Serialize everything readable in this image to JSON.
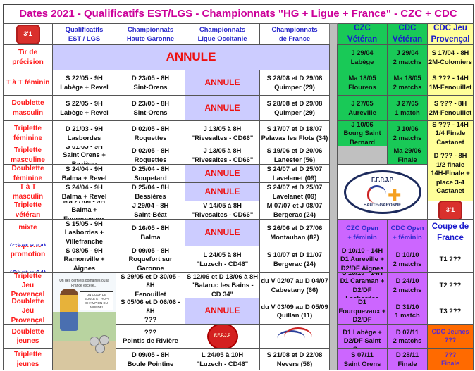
{
  "title": "Dates 2021 - Qualificatifs EST/LGS - Championnats \"HG + Ligue + France\" - CZC + CDC",
  "colors": {
    "title": "#cc0099",
    "label": "#ff1a1a",
    "header": "#2a2acc",
    "annule_bg": "#ccccff",
    "czc_green": "#19c957",
    "jeu_provencal_yellow": "#ffff99",
    "open_purple": "#cc66ff",
    "jeunes_orange": "#ff6a00"
  },
  "logos": {
    "club_logo": "3'1",
    "ffpjp_logo": "F.F.P.J.P HAUTE-GARONNE",
    "ligue_logo": "F.F.P.J.P",
    "france_logo": "FFPJP"
  },
  "cartoon": {
    "caption": "Un des derniers domaines où la France excelle...",
    "bubble": "Un coup de boule et hop! Champion du monde!"
  },
  "headers": [
    "Qualificatifs\nEST / LGS",
    "Championnats\nHaute Garonne",
    "Championnats\nLigue Occitanie",
    "Championnats\nde France",
    "CZC\nVétéran",
    "CDC\nVétéran",
    "CDC Jeu\nProvençal"
  ],
  "headers2": [
    "CZC Open\n+ féminin",
    "CDC Open\n+ féminin",
    "Coupe de\nFrance"
  ],
  "annule": "ANNULE",
  "rows": [
    {
      "label": "Tir de\nprécision",
      "cells": []
    },
    {
      "label": "T à T féminin",
      "cells": [
        "S 22/05 - 9H\nLabège + Revel",
        "D 23/05 - 8H\nSint-Orens",
        "ANNULE",
        "S 28/08 et D 29/08\nQuimper (29)"
      ]
    },
    {
      "label": "Doublette\nmasculin",
      "cells": [
        "S 22/05 - 9H\nLabège + Revel",
        "D 23/05 - 8H\nSint-Orens",
        "ANNULE",
        "S 28/08 et D 29/08\nQuimper (29)"
      ]
    },
    {
      "label": "Triplette\nféminine",
      "cells": [
        "D 21/03 - 9H\nLasbordes",
        "D 02/05 - 8H\nRoquettes",
        "J 13/05 à 8H\n\"Rivesaltes - CD66\"",
        "S 17/07 et D 18/07\nPalavas les Flots (34)"
      ]
    },
    {
      "label": "Triplette\nmasculine",
      "cells": [
        "S 01/05 - 9H\nSaint Orens + Baziège",
        "D 02/05 - 8H\nRoquettes",
        "J 13/05 à 8H\n\"Rivesaltes - CD66\"",
        "S 19/06 et D 20/06\nLanester (56)"
      ]
    },
    {
      "label": "Doublette\nféminine",
      "cells": [
        "S 24/04 - 9H\nBalma + Revel",
        "D 25/04 - 8H\nSoupetard",
        "ANNULE",
        "S 24/07 et D 25/07\nLavelanet (09)"
      ]
    },
    {
      "label": "T à T masculin",
      "cells": [
        "S 24/04 - 9H\nBalma + Revel",
        "D 25/04 - 8H\nBessières",
        "ANNULE",
        "S 24/07 et D 25/07\nLavelanet (09)"
      ]
    },
    {
      "label": "Triplette\nvétéran",
      "cells": [
        "Ma 27/04 - 9H\nBalma + Fourquevaux",
        "J 29/04 - 8H\nSaint-Béat",
        "V 14/05 à 8H\n\"Rivesaltes - CD66\"",
        "M 07/07 et J 08/07\nBergerac (24)"
      ]
    },
    {
      "label": "Doublette\nmixte",
      "sub": "(Chpt x 64)",
      "cells": [
        "S 15/05 - 9H\nLasbordes +\nVillefranche",
        "D 16/05 - 8H\nBalma",
        "ANNULE",
        "S 26/06 et D 27/06\nMontauban (82)"
      ]
    },
    {
      "label": "Triplette\npromotion",
      "sub": "(Chpt x 64)",
      "cells": [
        "S 08/05 - 9H\nRamonville + Aignes",
        "D 09/05 - 8H\nRoquefort sur Garonne",
        "L 24/05 à 8H\n\"Luzech - CD46\"",
        "S 10/07 et D 11/07\nBergerac (24)"
      ]
    },
    {
      "label": "Triplette\nJeu Provençal",
      "cells": [
        "",
        "S 29/05 et D 30/05 - 8H\nFenouillet",
        "S 12/06 et D 13/06 à 8H\n\"Balaruc les Bains - CD 34\"",
        "du V 02/07 au D 04/07\nCabestany (66)"
      ]
    },
    {
      "label": "Doublette\nJeu Provençal",
      "cells": [
        "",
        "S 05/06 et D 06/06 - 8H\n???",
        "ANNULE",
        "du V 03/09 au D 05/09\nQuillan (11)"
      ]
    },
    {
      "label": "Doublette\njeunes",
      "cells": [
        "",
        "???\nPointis de Rivière",
        "",
        ""
      ]
    },
    {
      "label": "Triplette\njeunes",
      "cells": [
        "",
        "D 09/05 - 8H\nBoule Pointine",
        "L 24/05 à 10H\n\"Luzech - CD46\"",
        "S 21/08 et D 22/08\nNevers (58)"
      ]
    }
  ],
  "right": {
    "veteran": [
      [
        "J 29/04\nLabège",
        "J 29/04\n2 matchs",
        "S 17/04 - 8H\n2M-Colomiers"
      ],
      [
        "Ma 18/05\nFlourens",
        "Ma 18/05\n2 matchs",
        "S ??? - 14H\n1M-Fenouillet"
      ],
      [
        "J 27/05\nAureville",
        "J 27/05\n1 match",
        "S ??? - 8H\n2M-Fenouillet"
      ],
      [
        "J 10/06\nBourg Saint\nBernard",
        "J 10/06\n2 matchs",
        "S ??? - 14H\n1/4 Finale\nCastanet"
      ]
    ],
    "cdc_final": "Ma 29/06\nFinale",
    "jp_final": "D ??? - 8H\n1/2 finale\n14H-Finale +\nplace 3-4\nCastanet",
    "open": [
      [
        "D 10/10 - 14H\nD1 Aureville +\nD2/DF Aignes",
        "D 10/10\n2 matchs",
        "T1 ???"
      ],
      [
        "S 16/10 - 14H\nD1 Caraman +\nD2/DF Lasbordes",
        "D 24/10\n2 matchs",
        "T2 ???"
      ],
      [
        "D 24/10 - 14H\nD1 Fourquevaux +\nD2/DF Montgiscard",
        "D 31/10\n1 match",
        "T3 ???"
      ],
      [
        "S 30/10 - 14H\nD1 Labège +\nD2/DF Saint Orens",
        "D 07/11\n2 matchs",
        "CDC Jeunes\n???"
      ],
      [
        "S 07/11\nSaint Orens",
        "D 28/11\nFinale",
        "???\nFinale"
      ]
    ]
  }
}
